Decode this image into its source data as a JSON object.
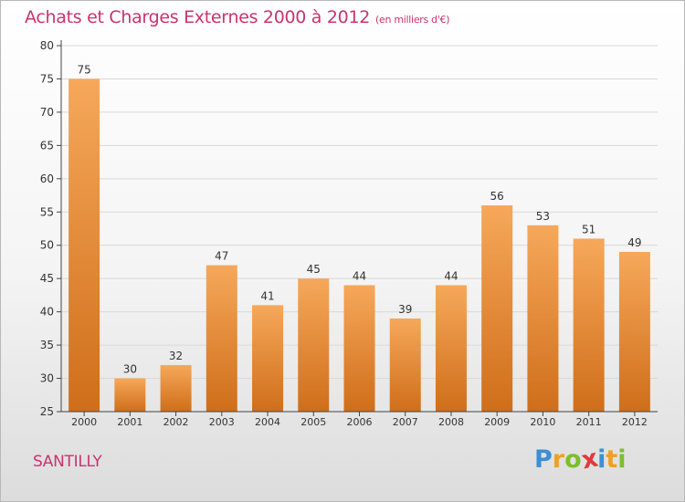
{
  "title": "Achats et Charges Externes 2000 à 2012",
  "unit": "(en milliers d'€)",
  "commune": "SANTILLY",
  "logo": {
    "text": "Proxiti",
    "letters": [
      {
        "char": "P",
        "color": "#3a8fd8"
      },
      {
        "char": "r",
        "color": "#f0a020"
      },
      {
        "char": "o",
        "color": "#7cbf2a"
      },
      {
        "char": "x",
        "color": "#e03a3a"
      },
      {
        "char": "i",
        "color": "#3a8fd8"
      },
      {
        "char": "t",
        "color": "#f0a020"
      },
      {
        "char": "i",
        "color": "#7cbf2a"
      }
    ]
  },
  "colors": {
    "title": "#c83470",
    "bar_top": "#f6a85a",
    "bar_bottom": "#cf6e1a",
    "axis": "#444444",
    "grid": "#d8d8d8"
  },
  "chart_data": {
    "type": "bar",
    "title": "Achats et Charges Externes 2000 à 2012",
    "ylabel": "(en milliers d'€)",
    "xlabel": "",
    "categories": [
      "2000",
      "2001",
      "2002",
      "2003",
      "2004",
      "2005",
      "2006",
      "2007",
      "2008",
      "2009",
      "2010",
      "2011",
      "2012"
    ],
    "values": [
      75,
      30,
      32,
      47,
      41,
      45,
      44,
      39,
      44,
      56,
      53,
      51,
      49
    ],
    "ylim": [
      25,
      80
    ],
    "yticks": [
      25,
      30,
      35,
      40,
      45,
      50,
      55,
      60,
      65,
      70,
      75,
      80
    ],
    "grid": true,
    "legend": "none"
  }
}
